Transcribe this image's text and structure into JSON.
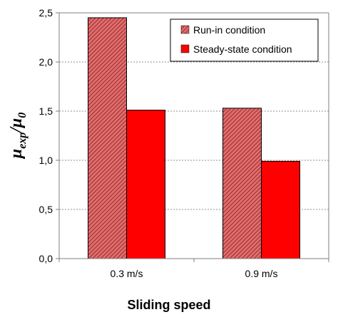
{
  "chart_data": {
    "type": "bar",
    "categories": [
      "0.3 m/s",
      "0.9 m/s"
    ],
    "series": [
      {
        "name": "Run-in condition",
        "values": [
          2.45,
          1.53
        ],
        "color": "#c0504d",
        "pattern": "diagonal-hatch"
      },
      {
        "name": "Steady-state condition",
        "values": [
          1.51,
          0.99
        ],
        "color": "#ff0000",
        "pattern": "solid"
      }
    ],
    "xlabel": "Sliding speed",
    "ylabel": {
      "base": "μ",
      "sub1": "exp",
      "slash": "/μ",
      "sub2": "0"
    },
    "ylim": [
      0,
      2.5
    ],
    "yticks": [
      "0,0",
      "0,5",
      "1,0",
      "1,5",
      "2,0",
      "2,5"
    ],
    "ytick_values": [
      0,
      0.5,
      1.0,
      1.5,
      2.0,
      2.5
    ],
    "grid": true,
    "legend_position": "top-right"
  }
}
